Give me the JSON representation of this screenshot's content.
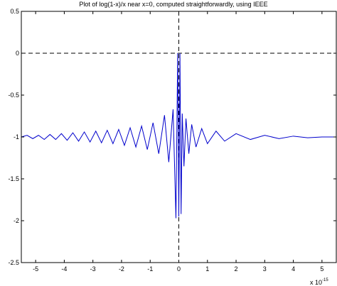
{
  "chart_data": {
    "type": "line",
    "title": "Plot of log(1-x)/x near x=0, computed straightforwardly, using IEEE",
    "xlabel": "",
    "ylabel": "",
    "x_multiplier_label": "x 10",
    "x_multiplier_exponent": "-15",
    "xlim": [
      -5.5,
      5.5
    ],
    "ylim": [
      -2.5,
      0.5
    ],
    "x_ticks": [
      -5,
      -4,
      -3,
      -2,
      -1,
      0,
      1,
      2,
      3,
      4,
      5
    ],
    "x_tick_labels": [
      "-5",
      "-4",
      "-3",
      "-2",
      "-1",
      "0",
      "1",
      "2",
      "3",
      "4",
      "5"
    ],
    "y_ticks": [
      0.5,
      0,
      -0.5,
      -1,
      -1.5,
      -2,
      -2.5
    ],
    "y_tick_labels": [
      "0.5",
      "0",
      "-0.5",
      "-1",
      "-1.5",
      "-2",
      "-2.5"
    ],
    "grid": false,
    "reference_lines": [
      {
        "orientation": "horizontal",
        "value": 0,
        "style": "dashed"
      },
      {
        "orientation": "vertical",
        "value": 0,
        "style": "dashed"
      }
    ],
    "series": [
      {
        "color": "#0000cc",
        "x": [
          -5.5,
          -5.3,
          -5.1,
          -4.9,
          -4.7,
          -4.5,
          -4.3,
          -4.1,
          -3.9,
          -3.7,
          -3.5,
          -3.3,
          -3.1,
          -2.9,
          -2.7,
          -2.5,
          -2.3,
          -2.1,
          -1.9,
          -1.7,
          -1.5,
          -1.3,
          -1.1,
          -0.9,
          -0.7,
          -0.5,
          -0.35,
          -0.2,
          -0.1,
          -0.04,
          0.0,
          0.04,
          0.08,
          0.12,
          0.18,
          0.25,
          0.35,
          0.45,
          0.6,
          0.8,
          1.0,
          1.3,
          1.6,
          2.0,
          2.5,
          3.0,
          3.5,
          4.0,
          4.5,
          5.0,
          5.5
        ],
        "y": [
          -1.0,
          -0.98,
          -1.02,
          -0.98,
          -1.03,
          -0.97,
          -1.03,
          -0.96,
          -1.04,
          -0.95,
          -1.05,
          -0.94,
          -1.06,
          -0.93,
          -1.07,
          -0.92,
          -1.08,
          -0.91,
          -1.1,
          -0.89,
          -1.12,
          -0.87,
          -1.15,
          -0.83,
          -1.2,
          -0.74,
          -1.3,
          -0.67,
          -1.97,
          0.0,
          -1.95,
          0.0,
          -1.92,
          -0.72,
          -1.35,
          -0.78,
          -1.2,
          -0.85,
          -1.12,
          -0.9,
          -1.08,
          -0.93,
          -1.05,
          -0.96,
          -1.03,
          -0.98,
          -1.02,
          -0.99,
          -1.01,
          -1.0,
          -1.0
        ]
      }
    ]
  }
}
